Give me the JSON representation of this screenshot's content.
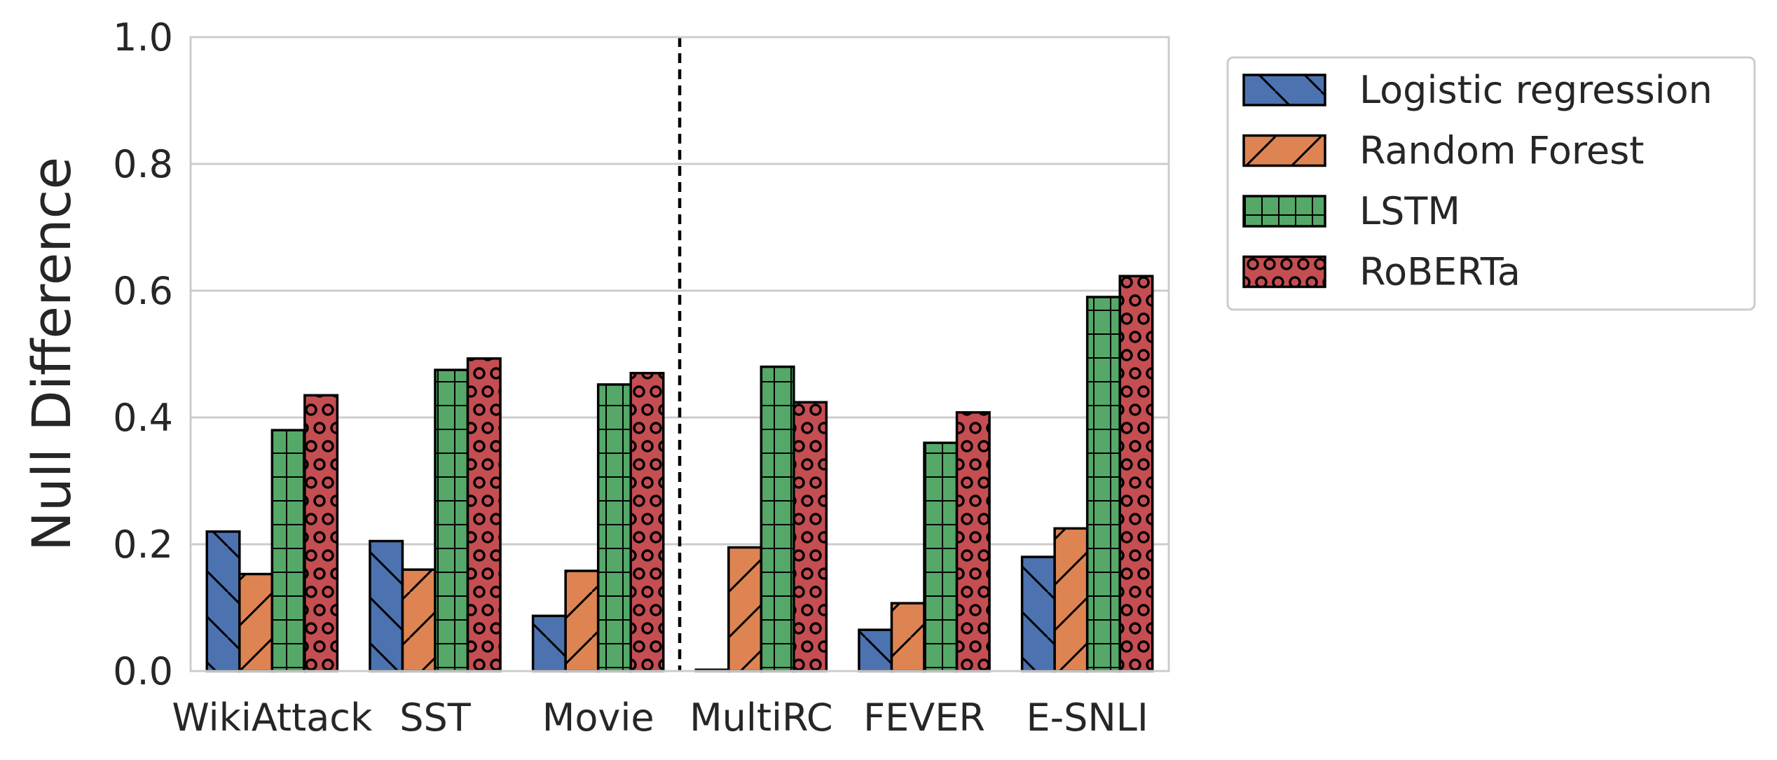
{
  "chart_data": {
    "type": "bar",
    "title": "",
    "xlabel": "",
    "ylabel": "Null Difference",
    "ylim": [
      0,
      1.0
    ],
    "yticks": [
      "0.0",
      "0.2",
      "0.4",
      "0.6",
      "0.8",
      "1.0"
    ],
    "grid": true,
    "legend_position": "outside-top-right",
    "divider_after_category": "Movie",
    "categories": [
      "WikiAttack",
      "SST",
      "Movie",
      "MultiRC",
      "FEVER",
      "E-SNLI"
    ],
    "series": [
      {
        "name": "Logistic regression",
        "color": "#4C72B0",
        "hatch": "backslash",
        "values": [
          0.22,
          0.205,
          0.087,
          0.002,
          0.065,
          0.18
        ]
      },
      {
        "name": "Random Forest",
        "color": "#DD8452",
        "hatch": "slash",
        "values": [
          0.153,
          0.16,
          0.158,
          0.195,
          0.107,
          0.225
        ]
      },
      {
        "name": "LSTM",
        "color": "#55A868",
        "hatch": "grid",
        "values": [
          0.38,
          0.475,
          0.452,
          0.48,
          0.36,
          0.59
        ]
      },
      {
        "name": "RoBERTa",
        "color": "#C44E52",
        "hatch": "circles",
        "values": [
          0.435,
          0.493,
          0.47,
          0.424,
          0.408,
          0.623
        ]
      }
    ]
  }
}
